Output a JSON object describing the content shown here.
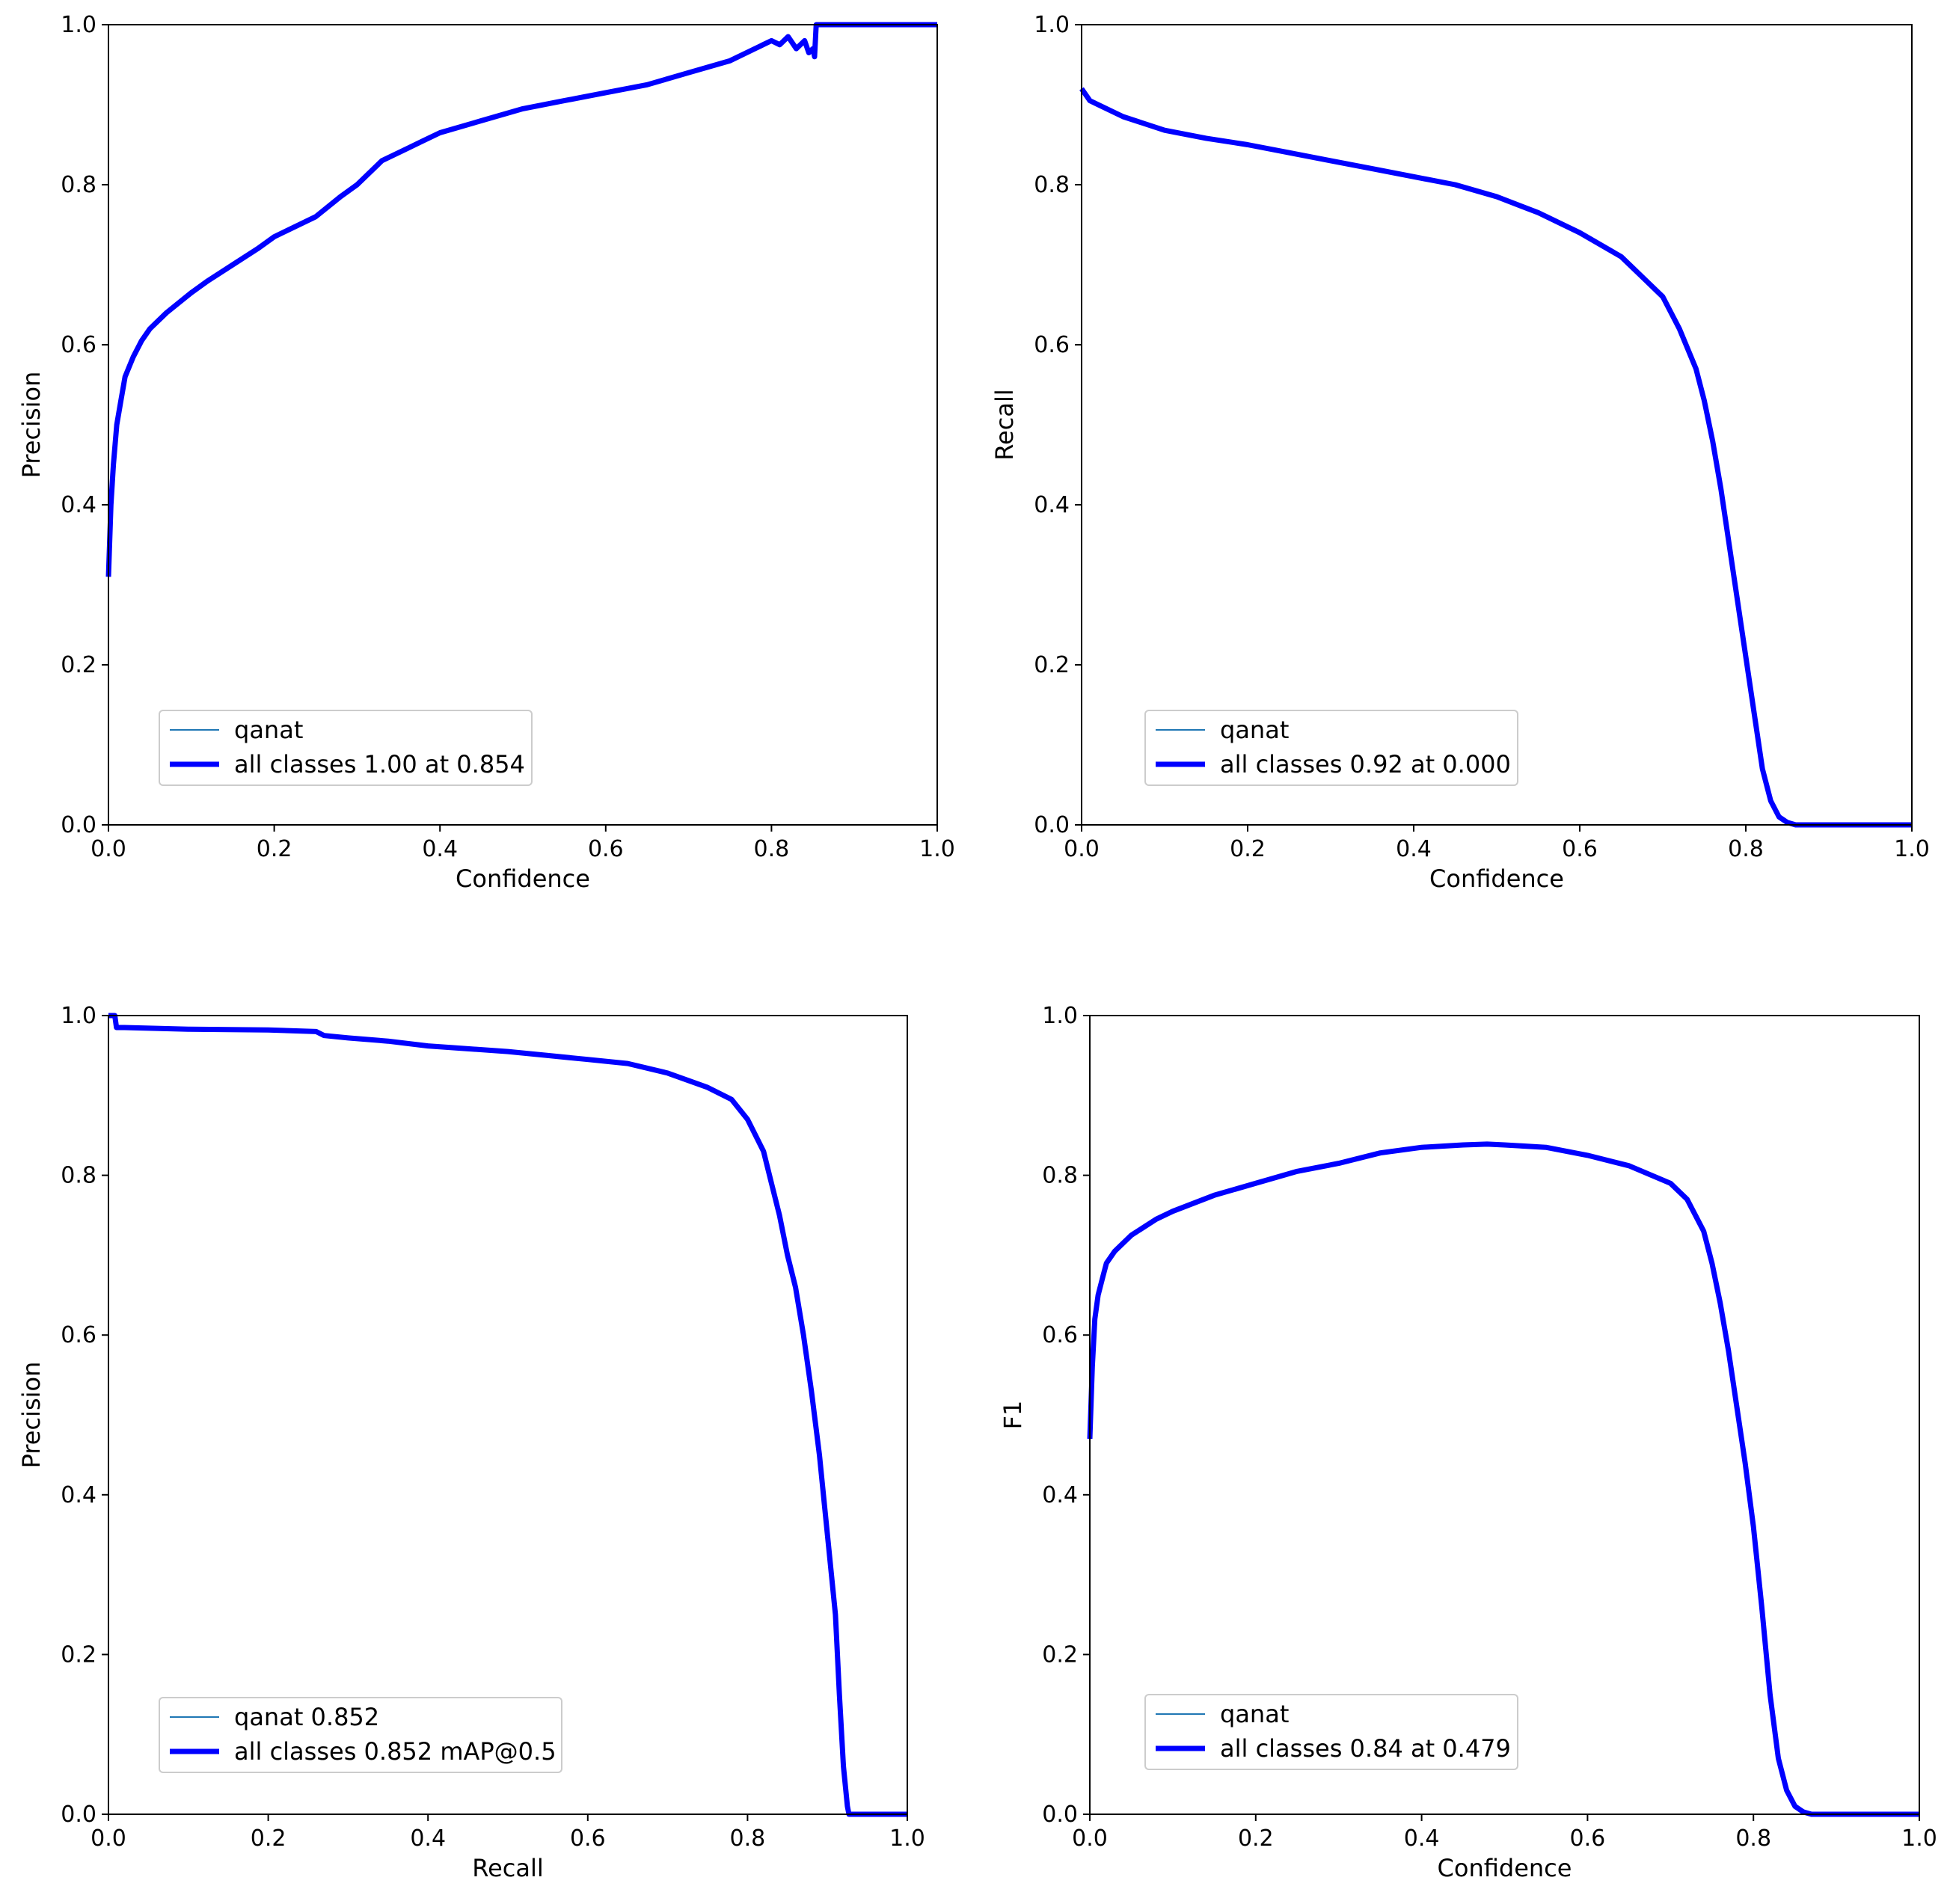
{
  "colors": {
    "class_series": "#1f77b4",
    "all_classes": "#0000ff",
    "frame": "#000000",
    "background": "#ffffff",
    "legend_border": "#cccccc"
  },
  "chart_data": [
    {
      "type": "line",
      "xlabel": "Confidence",
      "ylabel": "Precision",
      "xlim": [
        0,
        1
      ],
      "ylim": [
        0,
        1
      ],
      "xticks": [
        "0.0",
        "0.2",
        "0.4",
        "0.6",
        "0.8",
        "1.0"
      ],
      "yticks": [
        "0.0",
        "0.2",
        "0.4",
        "0.6",
        "0.8",
        "1.0"
      ],
      "grid": false,
      "legend_position": "lower-left",
      "legend": [
        "qanat",
        "all classes 1.00 at 0.854"
      ],
      "series": [
        {
          "name": "qanat",
          "x": [
            0.0,
            0.003,
            0.006,
            0.01,
            0.015,
            0.02,
            0.03,
            0.04,
            0.05,
            0.07,
            0.1,
            0.12,
            0.15,
            0.18,
            0.2,
            0.25,
            0.28,
            0.3,
            0.33,
            0.36,
            0.38,
            0.4,
            0.45,
            0.5,
            0.55,
            0.6,
            0.65,
            0.7,
            0.75,
            0.78,
            0.8,
            0.81,
            0.82,
            0.83,
            0.84,
            0.845,
            0.85,
            0.852,
            0.854,
            0.9,
            0.95,
            1.0
          ],
          "y": [
            0.31,
            0.4,
            0.45,
            0.5,
            0.53,
            0.56,
            0.585,
            0.605,
            0.62,
            0.64,
            0.665,
            0.68,
            0.7,
            0.72,
            0.735,
            0.76,
            0.785,
            0.8,
            0.83,
            0.845,
            0.855,
            0.865,
            0.88,
            0.895,
            0.905,
            0.915,
            0.925,
            0.94,
            0.955,
            0.97,
            0.98,
            0.975,
            0.985,
            0.97,
            0.98,
            0.965,
            0.97,
            0.96,
            1.0,
            1.0,
            1.0,
            1.0
          ]
        },
        {
          "name": "all classes 1.00 at 0.854",
          "x": [
            0.0,
            0.003,
            0.006,
            0.01,
            0.015,
            0.02,
            0.03,
            0.04,
            0.05,
            0.07,
            0.1,
            0.12,
            0.15,
            0.18,
            0.2,
            0.25,
            0.28,
            0.3,
            0.33,
            0.36,
            0.38,
            0.4,
            0.45,
            0.5,
            0.55,
            0.6,
            0.65,
            0.7,
            0.75,
            0.78,
            0.8,
            0.81,
            0.82,
            0.83,
            0.84,
            0.845,
            0.85,
            0.852,
            0.854,
            0.9,
            0.95,
            1.0
          ],
          "y": [
            0.31,
            0.4,
            0.45,
            0.5,
            0.53,
            0.56,
            0.585,
            0.605,
            0.62,
            0.64,
            0.665,
            0.68,
            0.7,
            0.72,
            0.735,
            0.76,
            0.785,
            0.8,
            0.83,
            0.845,
            0.855,
            0.865,
            0.88,
            0.895,
            0.905,
            0.915,
            0.925,
            0.94,
            0.955,
            0.97,
            0.98,
            0.975,
            0.985,
            0.97,
            0.98,
            0.965,
            0.97,
            0.96,
            1.0,
            1.0,
            1.0,
            1.0
          ]
        }
      ]
    },
    {
      "type": "line",
      "xlabel": "Confidence",
      "ylabel": "Recall",
      "xlim": [
        0,
        1
      ],
      "ylim": [
        0,
        1
      ],
      "xticks": [
        "0.0",
        "0.2",
        "0.4",
        "0.6",
        "0.8",
        "1.0"
      ],
      "yticks": [
        "0.0",
        "0.2",
        "0.4",
        "0.6",
        "0.8",
        "1.0"
      ],
      "grid": false,
      "legend_position": "lower-left",
      "legend": [
        "qanat",
        "all classes 0.92 at 0.000"
      ],
      "series": [
        {
          "name": "qanat",
          "x": [
            0.0,
            0.01,
            0.02,
            0.05,
            0.1,
            0.15,
            0.2,
            0.25,
            0.3,
            0.35,
            0.4,
            0.45,
            0.5,
            0.55,
            0.6,
            0.65,
            0.68,
            0.7,
            0.72,
            0.74,
            0.75,
            0.76,
            0.77,
            0.78,
            0.79,
            0.8,
            0.81,
            0.82,
            0.83,
            0.84,
            0.85,
            0.86,
            0.87,
            0.9,
            0.95,
            1.0
          ],
          "y": [
            0.92,
            0.905,
            0.9,
            0.885,
            0.868,
            0.858,
            0.85,
            0.84,
            0.83,
            0.82,
            0.81,
            0.8,
            0.785,
            0.765,
            0.74,
            0.71,
            0.68,
            0.66,
            0.62,
            0.57,
            0.53,
            0.48,
            0.42,
            0.35,
            0.28,
            0.21,
            0.14,
            0.07,
            0.03,
            0.01,
            0.003,
            0.0,
            0.0,
            0.0,
            0.0,
            0.0
          ]
        },
        {
          "name": "all classes 0.92 at 0.000",
          "x": [
            0.0,
            0.01,
            0.02,
            0.05,
            0.1,
            0.15,
            0.2,
            0.25,
            0.3,
            0.35,
            0.4,
            0.45,
            0.5,
            0.55,
            0.6,
            0.65,
            0.68,
            0.7,
            0.72,
            0.74,
            0.75,
            0.76,
            0.77,
            0.78,
            0.79,
            0.8,
            0.81,
            0.82,
            0.83,
            0.84,
            0.85,
            0.86,
            0.87,
            0.9,
            0.95,
            1.0
          ],
          "y": [
            0.92,
            0.905,
            0.9,
            0.885,
            0.868,
            0.858,
            0.85,
            0.84,
            0.83,
            0.82,
            0.81,
            0.8,
            0.785,
            0.765,
            0.74,
            0.71,
            0.68,
            0.66,
            0.62,
            0.57,
            0.53,
            0.48,
            0.42,
            0.35,
            0.28,
            0.21,
            0.14,
            0.07,
            0.03,
            0.01,
            0.003,
            0.0,
            0.0,
            0.0,
            0.0,
            0.0
          ]
        }
      ]
    },
    {
      "type": "line",
      "xlabel": "Recall",
      "ylabel": "Precision",
      "xlim": [
        0,
        1
      ],
      "ylim": [
        0,
        1
      ],
      "xticks": [
        "0.0",
        "0.2",
        "0.4",
        "0.6",
        "0.8",
        "1.0"
      ],
      "yticks": [
        "0.0",
        "0.2",
        "0.4",
        "0.6",
        "0.8",
        "1.0"
      ],
      "grid": false,
      "legend_position": "lower-left",
      "legend": [
        "qanat 0.852",
        "all classes 0.852 mAP@0.5"
      ],
      "series": [
        {
          "name": "qanat 0.852",
          "x": [
            0.0,
            0.008,
            0.01,
            0.02,
            0.1,
            0.2,
            0.26,
            0.27,
            0.3,
            0.35,
            0.4,
            0.5,
            0.55,
            0.6,
            0.65,
            0.7,
            0.75,
            0.78,
            0.8,
            0.82,
            0.83,
            0.84,
            0.85,
            0.86,
            0.87,
            0.88,
            0.89,
            0.9,
            0.91,
            0.915,
            0.92,
            0.925,
            0.927,
            0.93,
            0.95,
            1.0
          ],
          "y": [
            1.0,
            1.0,
            0.985,
            0.985,
            0.983,
            0.982,
            0.98,
            0.975,
            0.972,
            0.968,
            0.962,
            0.955,
            0.95,
            0.945,
            0.94,
            0.928,
            0.91,
            0.895,
            0.87,
            0.83,
            0.79,
            0.75,
            0.7,
            0.66,
            0.6,
            0.53,
            0.45,
            0.35,
            0.25,
            0.15,
            0.06,
            0.01,
            0.0,
            0.0,
            0.0,
            0.0
          ]
        },
        {
          "name": "all classes 0.852 mAP@0.5",
          "x": [
            0.0,
            0.008,
            0.01,
            0.02,
            0.1,
            0.2,
            0.26,
            0.27,
            0.3,
            0.35,
            0.4,
            0.5,
            0.55,
            0.6,
            0.65,
            0.7,
            0.75,
            0.78,
            0.8,
            0.82,
            0.83,
            0.84,
            0.85,
            0.86,
            0.87,
            0.88,
            0.89,
            0.9,
            0.91,
            0.915,
            0.92,
            0.925,
            0.927,
            0.93,
            0.95,
            1.0
          ],
          "y": [
            1.0,
            1.0,
            0.985,
            0.985,
            0.983,
            0.982,
            0.98,
            0.975,
            0.972,
            0.968,
            0.962,
            0.955,
            0.95,
            0.945,
            0.94,
            0.928,
            0.91,
            0.895,
            0.87,
            0.83,
            0.79,
            0.75,
            0.7,
            0.66,
            0.6,
            0.53,
            0.45,
            0.35,
            0.25,
            0.15,
            0.06,
            0.01,
            0.0,
            0.0,
            0.0,
            0.0
          ]
        }
      ]
    },
    {
      "type": "line",
      "xlabel": "Confidence",
      "ylabel": "F1",
      "xlim": [
        0,
        1
      ],
      "ylim": [
        0,
        1
      ],
      "xticks": [
        "0.0",
        "0.2",
        "0.4",
        "0.6",
        "0.8",
        "1.0"
      ],
      "yticks": [
        "0.0",
        "0.2",
        "0.4",
        "0.6",
        "0.8",
        "1.0"
      ],
      "grid": false,
      "legend_position": "lower-left",
      "legend": [
        "qanat",
        "all classes 0.84 at 0.479"
      ],
      "series": [
        {
          "name": "qanat",
          "x": [
            0.0,
            0.003,
            0.006,
            0.01,
            0.015,
            0.02,
            0.03,
            0.05,
            0.08,
            0.1,
            0.15,
            0.2,
            0.25,
            0.3,
            0.35,
            0.4,
            0.45,
            0.479,
            0.5,
            0.55,
            0.6,
            0.65,
            0.7,
            0.72,
            0.74,
            0.75,
            0.76,
            0.77,
            0.78,
            0.79,
            0.8,
            0.81,
            0.82,
            0.83,
            0.84,
            0.85,
            0.86,
            0.87,
            0.9,
            0.95,
            1.0
          ],
          "y": [
            0.47,
            0.56,
            0.62,
            0.65,
            0.67,
            0.69,
            0.705,
            0.725,
            0.745,
            0.755,
            0.775,
            0.79,
            0.805,
            0.815,
            0.828,
            0.835,
            0.838,
            0.839,
            0.838,
            0.835,
            0.825,
            0.812,
            0.79,
            0.77,
            0.73,
            0.69,
            0.64,
            0.58,
            0.51,
            0.44,
            0.36,
            0.26,
            0.15,
            0.07,
            0.03,
            0.01,
            0.003,
            0.0,
            0.0,
            0.0,
            0.0
          ]
        },
        {
          "name": "all classes 0.84 at 0.479",
          "x": [
            0.0,
            0.003,
            0.006,
            0.01,
            0.015,
            0.02,
            0.03,
            0.05,
            0.08,
            0.1,
            0.15,
            0.2,
            0.25,
            0.3,
            0.35,
            0.4,
            0.45,
            0.479,
            0.5,
            0.55,
            0.6,
            0.65,
            0.7,
            0.72,
            0.74,
            0.75,
            0.76,
            0.77,
            0.78,
            0.79,
            0.8,
            0.81,
            0.82,
            0.83,
            0.84,
            0.85,
            0.86,
            0.87,
            0.9,
            0.95,
            1.0
          ],
          "y": [
            0.47,
            0.56,
            0.62,
            0.65,
            0.67,
            0.69,
            0.705,
            0.725,
            0.745,
            0.755,
            0.775,
            0.79,
            0.805,
            0.815,
            0.828,
            0.835,
            0.838,
            0.839,
            0.838,
            0.835,
            0.825,
            0.812,
            0.79,
            0.77,
            0.73,
            0.69,
            0.64,
            0.58,
            0.51,
            0.44,
            0.36,
            0.26,
            0.15,
            0.07,
            0.03,
            0.01,
            0.003,
            0.0,
            0.0,
            0.0,
            0.0
          ]
        }
      ]
    }
  ]
}
